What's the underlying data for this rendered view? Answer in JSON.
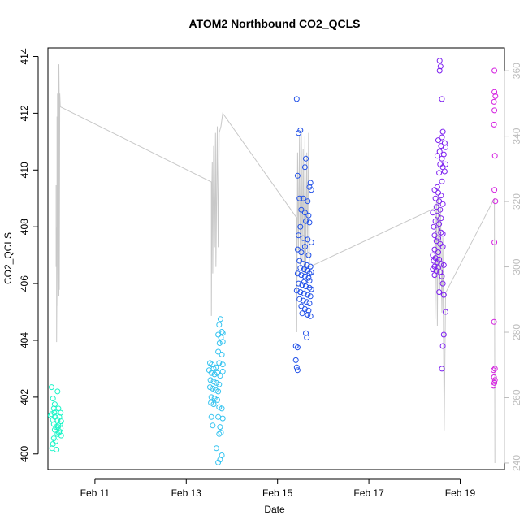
{
  "chart_data": {
    "type": "scatter",
    "title": "ATOM2 Northbound CO2_QCLS",
    "xlabel": "Date",
    "ylabel": "CO2_QCLS",
    "x_axis": {
      "unit": "days (Feb)",
      "range": [
        9.97,
        19.97
      ],
      "ticks": [
        11,
        13,
        15,
        17,
        19
      ],
      "tick_labels": [
        "Feb 11",
        "Feb 13",
        "Feb 15",
        "Feb 17",
        "Feb 19"
      ]
    },
    "y_axis_left": {
      "range": [
        399.45,
        414.3
      ],
      "ticks": [
        400,
        402,
        404,
        406,
        408,
        410,
        412,
        414
      ],
      "tick_labels": [
        "400",
        "402",
        "404",
        "406",
        "408",
        "410",
        "412",
        "414"
      ]
    },
    "y_axis_right": {
      "range": [
        238,
        367
      ],
      "ticks": [
        240,
        260,
        280,
        300,
        320,
        340,
        360
      ],
      "tick_labels": [
        "240",
        "260",
        "280",
        "300",
        "320",
        "340",
        "360"
      ],
      "color": "#bdbdbd"
    },
    "grid": false,
    "series": [
      {
        "color": "#1df5c8",
        "points": [
          [
            10.05,
            402.35
          ],
          [
            10.18,
            402.2
          ],
          [
            10.08,
            401.95
          ],
          [
            10.12,
            401.75
          ],
          [
            10.1,
            401.6
          ],
          [
            10.2,
            401.6
          ],
          [
            10.15,
            401.5
          ],
          [
            10.05,
            401.4
          ],
          [
            10.25,
            401.45
          ],
          [
            10.12,
            401.3
          ],
          [
            10.22,
            401.3
          ],
          [
            10.08,
            401.2
          ],
          [
            10.18,
            401.2
          ],
          [
            10.26,
            401.15
          ],
          [
            10.1,
            401.05
          ],
          [
            10.2,
            401.0
          ],
          [
            10.15,
            400.95
          ],
          [
            10.25,
            400.9
          ],
          [
            10.12,
            400.85
          ],
          [
            10.22,
            400.8
          ],
          [
            10.18,
            400.7
          ],
          [
            10.26,
            400.65
          ],
          [
            10.1,
            400.55
          ],
          [
            10.14,
            400.45
          ],
          [
            10.08,
            400.35
          ],
          [
            10.06,
            400.2
          ],
          [
            10.16,
            400.15
          ],
          [
            10.03,
            401.35
          ],
          [
            10.24,
            401.05
          ],
          [
            10.19,
            400.95
          ],
          [
            10.11,
            401.45
          ],
          [
            10.21,
            400.75
          ]
        ]
      },
      {
        "color": "#33c3f0",
        "points": [
          [
            13.75,
            404.75
          ],
          [
            13.72,
            404.55
          ],
          [
            13.78,
            404.3
          ],
          [
            13.7,
            404.2
          ],
          [
            13.8,
            404.25
          ],
          [
            13.76,
            404.1
          ],
          [
            13.73,
            403.9
          ],
          [
            13.8,
            403.95
          ],
          [
            13.7,
            403.6
          ],
          [
            13.78,
            403.5
          ],
          [
            13.52,
            403.2
          ],
          [
            13.56,
            403.15
          ],
          [
            13.6,
            403.0
          ],
          [
            13.65,
            403.05
          ],
          [
            13.72,
            403.2
          ],
          [
            13.8,
            403.15
          ],
          [
            13.5,
            402.95
          ],
          [
            13.55,
            402.85
          ],
          [
            13.62,
            402.8
          ],
          [
            13.68,
            402.85
          ],
          [
            13.74,
            402.75
          ],
          [
            13.8,
            402.9
          ],
          [
            13.53,
            402.6
          ],
          [
            13.6,
            402.55
          ],
          [
            13.66,
            402.5
          ],
          [
            13.72,
            402.45
          ],
          [
            13.58,
            402.3
          ],
          [
            13.64,
            402.25
          ],
          [
            13.7,
            402.2
          ],
          [
            13.55,
            402.0
          ],
          [
            13.62,
            401.95
          ],
          [
            13.68,
            401.9
          ],
          [
            13.54,
            401.8
          ],
          [
            13.6,
            401.75
          ],
          [
            13.72,
            401.65
          ],
          [
            13.78,
            401.6
          ],
          [
            13.55,
            401.3
          ],
          [
            13.7,
            401.3
          ],
          [
            13.8,
            401.25
          ],
          [
            13.58,
            401.0
          ],
          [
            13.74,
            400.95
          ],
          [
            13.76,
            400.75
          ],
          [
            13.72,
            400.7
          ],
          [
            13.78,
            399.95
          ],
          [
            13.74,
            399.8
          ],
          [
            13.7,
            399.7
          ],
          [
            13.66,
            400.2
          ],
          [
            13.52,
            402.35
          ]
        ]
      },
      {
        "color": "#1f4fe8",
        "points": [
          [
            15.42,
            412.5
          ],
          [
            15.46,
            411.3
          ],
          [
            15.5,
            411.4
          ],
          [
            15.62,
            410.4
          ],
          [
            15.6,
            410.1
          ],
          [
            15.44,
            409.8
          ],
          [
            15.72,
            409.55
          ],
          [
            15.7,
            409.4
          ],
          [
            15.74,
            409.3
          ],
          [
            15.56,
            409.0
          ],
          [
            15.48,
            409.0
          ],
          [
            15.66,
            408.9
          ],
          [
            15.52,
            408.6
          ],
          [
            15.6,
            408.5
          ],
          [
            15.68,
            408.4
          ],
          [
            15.62,
            408.2
          ],
          [
            15.7,
            408.15
          ],
          [
            15.5,
            408.0
          ],
          [
            15.46,
            407.7
          ],
          [
            15.56,
            407.6
          ],
          [
            15.66,
            407.55
          ],
          [
            15.74,
            407.45
          ],
          [
            15.6,
            407.3
          ],
          [
            15.44,
            407.2
          ],
          [
            15.52,
            407.1
          ],
          [
            15.68,
            407.0
          ],
          [
            15.48,
            406.8
          ],
          [
            15.56,
            406.7
          ],
          [
            15.64,
            406.65
          ],
          [
            15.72,
            406.6
          ],
          [
            15.5,
            406.55
          ],
          [
            15.58,
            406.5
          ],
          [
            15.66,
            406.45
          ],
          [
            15.74,
            406.4
          ],
          [
            15.44,
            406.35
          ],
          [
            15.52,
            406.3
          ],
          [
            15.6,
            406.25
          ],
          [
            15.68,
            406.2
          ],
          [
            15.7,
            406.1
          ],
          [
            15.46,
            406.0
          ],
          [
            15.54,
            405.95
          ],
          [
            15.62,
            405.9
          ],
          [
            15.7,
            405.85
          ],
          [
            15.74,
            405.8
          ],
          [
            15.42,
            405.75
          ],
          [
            15.5,
            405.7
          ],
          [
            15.58,
            405.65
          ],
          [
            15.66,
            405.6
          ],
          [
            15.72,
            405.55
          ],
          [
            15.48,
            405.45
          ],
          [
            15.56,
            405.4
          ],
          [
            15.64,
            405.35
          ],
          [
            15.7,
            405.3
          ],
          [
            15.52,
            405.2
          ],
          [
            15.6,
            405.1
          ],
          [
            15.68,
            405.05
          ],
          [
            15.54,
            404.95
          ],
          [
            15.66,
            404.9
          ],
          [
            15.72,
            404.85
          ],
          [
            15.62,
            404.25
          ],
          [
            15.64,
            404.1
          ],
          [
            15.4,
            403.8
          ],
          [
            15.44,
            403.75
          ],
          [
            15.4,
            403.3
          ],
          [
            15.42,
            403.05
          ],
          [
            15.44,
            402.95
          ],
          [
            15.58,
            406.05
          ],
          [
            15.7,
            406.35
          ]
        ]
      },
      {
        "color": "#7d1ff0",
        "points": [
          [
            18.55,
            413.85
          ],
          [
            18.57,
            413.65
          ],
          [
            18.55,
            413.5
          ],
          [
            18.6,
            412.5
          ],
          [
            18.62,
            411.35
          ],
          [
            18.6,
            411.15
          ],
          [
            18.52,
            411.05
          ],
          [
            18.66,
            410.95
          ],
          [
            18.58,
            410.85
          ],
          [
            18.68,
            410.8
          ],
          [
            18.55,
            410.65
          ],
          [
            18.64,
            410.55
          ],
          [
            18.5,
            410.5
          ],
          [
            18.6,
            410.4
          ],
          [
            18.68,
            410.2
          ],
          [
            18.56,
            410.2
          ],
          [
            18.62,
            410.1
          ],
          [
            18.66,
            409.95
          ],
          [
            18.54,
            409.9
          ],
          [
            18.6,
            409.6
          ],
          [
            18.5,
            409.4
          ],
          [
            18.44,
            409.3
          ],
          [
            18.52,
            409.2
          ],
          [
            18.58,
            409.1
          ],
          [
            18.46,
            409.0
          ],
          [
            18.54,
            408.9
          ],
          [
            18.62,
            408.8
          ],
          [
            18.48,
            408.7
          ],
          [
            18.56,
            408.6
          ],
          [
            18.4,
            408.5
          ],
          [
            18.5,
            408.4
          ],
          [
            18.58,
            408.3
          ],
          [
            18.46,
            408.2
          ],
          [
            18.54,
            408.1
          ],
          [
            18.42,
            408.0
          ],
          [
            18.5,
            407.9
          ],
          [
            18.58,
            407.8
          ],
          [
            18.62,
            407.75
          ],
          [
            18.44,
            407.7
          ],
          [
            18.52,
            407.6
          ],
          [
            18.48,
            407.5
          ],
          [
            18.56,
            407.4
          ],
          [
            18.62,
            407.3
          ],
          [
            18.44,
            407.2
          ],
          [
            18.52,
            407.1
          ],
          [
            18.4,
            407.0
          ],
          [
            18.46,
            406.9
          ],
          [
            18.54,
            406.85
          ],
          [
            18.42,
            406.8
          ],
          [
            18.5,
            406.75
          ],
          [
            18.58,
            406.7
          ],
          [
            18.64,
            406.65
          ],
          [
            18.44,
            406.6
          ],
          [
            18.52,
            406.55
          ],
          [
            18.4,
            406.5
          ],
          [
            18.48,
            406.45
          ],
          [
            18.56,
            406.4
          ],
          [
            18.44,
            406.3
          ],
          [
            18.6,
            406.25
          ],
          [
            18.62,
            406.0
          ],
          [
            18.54,
            405.7
          ],
          [
            18.64,
            405.6
          ],
          [
            18.68,
            405.0
          ],
          [
            18.64,
            404.2
          ],
          [
            18.62,
            403.8
          ],
          [
            18.6,
            403.0
          ]
        ]
      },
      {
        "color": "#d41fe0",
        "points": [
          [
            19.75,
            413.5
          ],
          [
            19.75,
            412.75
          ],
          [
            19.77,
            412.6
          ],
          [
            19.74,
            412.4
          ],
          [
            19.75,
            412.1
          ],
          [
            19.74,
            411.6
          ],
          [
            19.76,
            410.5
          ],
          [
            19.75,
            409.3
          ],
          [
            19.77,
            408.9
          ],
          [
            19.75,
            407.45
          ],
          [
            19.74,
            404.65
          ],
          [
            19.76,
            403.0
          ],
          [
            19.73,
            402.95
          ],
          [
            19.74,
            402.7
          ],
          [
            19.76,
            402.6
          ],
          [
            19.75,
            402.5
          ],
          [
            19.73,
            402.4
          ]
        ]
      }
    ],
    "trace": {
      "color": "#c8c8c8",
      "axis": "right",
      "keypoints": [
        [
          10.15,
          325
        ],
        [
          10.15,
          300
        ],
        [
          10.16,
          312
        ],
        [
          10.16,
          277
        ],
        [
          10.17,
          300
        ],
        [
          10.17,
          346
        ],
        [
          10.18,
          318
        ],
        [
          10.18,
          353
        ],
        [
          10.19,
          288
        ],
        [
          10.19,
          345
        ],
        [
          10.2,
          291
        ],
        [
          10.2,
          355
        ],
        [
          10.21,
          291
        ],
        [
          10.21,
          362
        ],
        [
          10.22,
          350
        ],
        [
          10.22,
          293
        ],
        [
          10.23,
          353
        ],
        [
          10.24,
          349
        ],
        [
          13.55,
          326
        ],
        [
          13.55,
          285
        ],
        [
          13.56,
          324
        ],
        [
          13.57,
          332
        ],
        [
          13.58,
          298
        ],
        [
          13.6,
          337
        ],
        [
          13.62,
          306
        ],
        [
          13.64,
          341
        ],
        [
          13.65,
          300
        ],
        [
          13.68,
          343
        ],
        [
          13.7,
          306
        ],
        [
          13.72,
          341
        ],
        [
          13.76,
          343
        ],
        [
          13.8,
          347
        ],
        [
          15.42,
          315
        ],
        [
          15.42,
          280
        ],
        [
          15.44,
          335
        ],
        [
          15.46,
          305
        ],
        [
          15.48,
          340
        ],
        [
          15.5,
          300
        ],
        [
          15.52,
          342
        ],
        [
          15.54,
          302
        ],
        [
          15.56,
          336
        ],
        [
          15.58,
          298
        ],
        [
          15.6,
          340
        ],
        [
          15.62,
          300
        ],
        [
          15.64,
          335
        ],
        [
          15.66,
          303
        ],
        [
          15.68,
          341
        ],
        [
          15.7,
          300
        ],
        [
          18.45,
          318
        ],
        [
          18.45,
          284
        ],
        [
          18.48,
          320
        ],
        [
          18.5,
          282
        ],
        [
          18.52,
          322
        ],
        [
          18.55,
          293
        ],
        [
          18.57,
          318
        ],
        [
          18.6,
          286
        ],
        [
          18.62,
          309
        ],
        [
          18.65,
          250
        ],
        [
          18.68,
          292
        ],
        [
          19.75,
          321
        ],
        [
          19.76,
          240
        ]
      ]
    }
  }
}
